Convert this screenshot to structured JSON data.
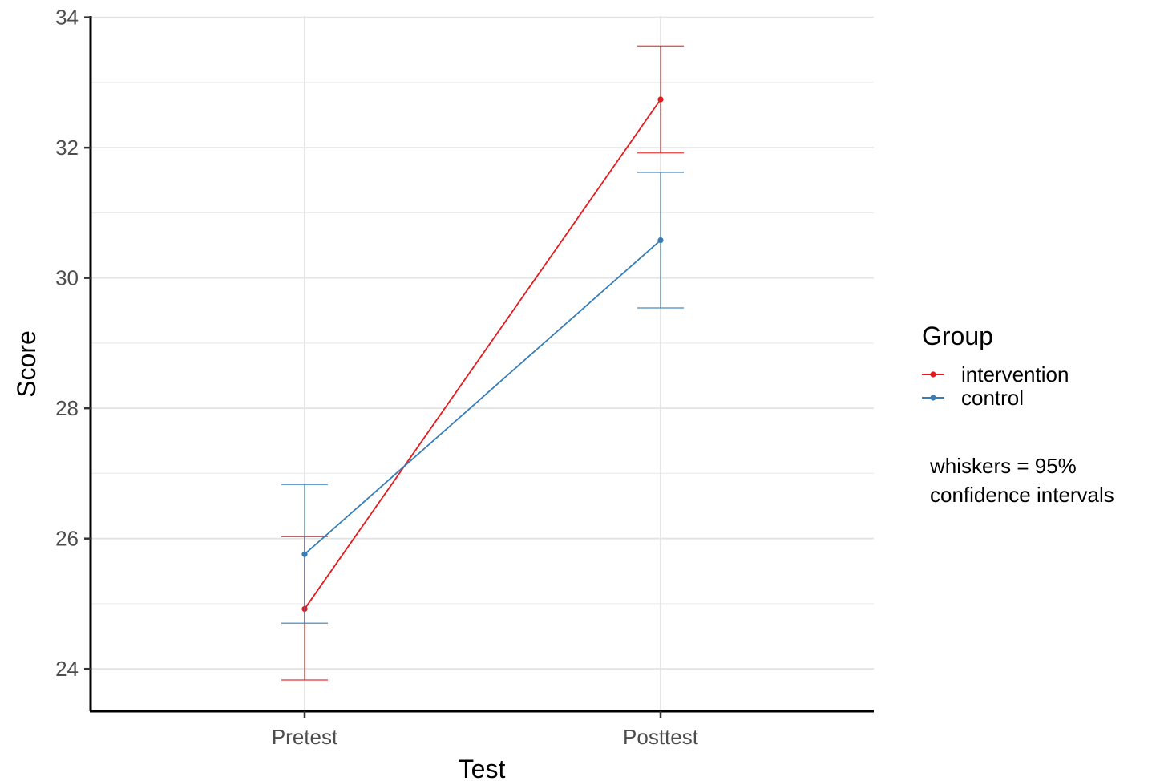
{
  "chart_data": {
    "type": "line",
    "xlabel": "Test",
    "ylabel": "Score",
    "categories": [
      "Pretest",
      "Posttest"
    ],
    "ylim": [
      23.35,
      34.02
    ],
    "yticks": [
      24,
      26,
      28,
      30,
      32,
      34
    ],
    "ytick_labels": [
      "24",
      "26",
      "28",
      "30",
      "32",
      "34"
    ],
    "grid": true,
    "series": [
      {
        "name": "intervention",
        "color": "#e41a1c",
        "values": [
          24.92,
          32.74
        ],
        "ci_low": [
          23.83,
          31.92
        ],
        "ci_high": [
          26.03,
          33.56
        ]
      },
      {
        "name": "control",
        "color": "#377eb8",
        "values": [
          25.76,
          30.58
        ],
        "ci_low": [
          24.7,
          29.54
        ],
        "ci_high": [
          26.83,
          31.62
        ]
      }
    ],
    "legend": {
      "title": "Group",
      "position": "right"
    },
    "annotation": {
      "lines": [
        "whiskers = 95%",
        "confidence intervals"
      ]
    }
  }
}
